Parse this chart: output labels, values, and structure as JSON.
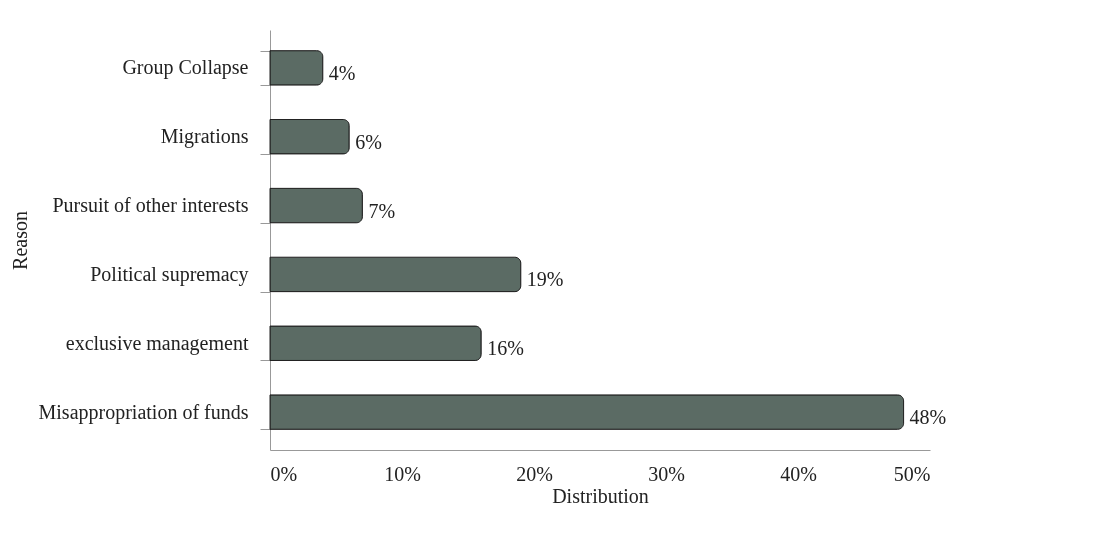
{
  "chart_data": {
    "type": "bar",
    "orientation": "horizontal",
    "xlabel": "Distribution",
    "ylabel": "Reason",
    "categories": [
      "Group Collapse",
      "Migrations",
      "Pursuit of other interests",
      "Political supremacy",
      "exclusive management",
      "Misappropriation of funds"
    ],
    "values": [
      4,
      6,
      7,
      19,
      16,
      48
    ],
    "value_labels": [
      "4%",
      "6%",
      "7%",
      "19%",
      "16%",
      "48%"
    ],
    "color": "#5b6b64",
    "xlim": [
      0,
      50
    ],
    "xticks": [
      {
        "value": 0,
        "label": "0%"
      },
      {
        "value": 10,
        "label": "10%"
      },
      {
        "value": 20,
        "label": "20%"
      },
      {
        "value": 30,
        "label": "30%"
      },
      {
        "value": 40,
        "label": "40%"
      },
      {
        "value": 50,
        "label": "50%"
      }
    ],
    "grid": false
  }
}
